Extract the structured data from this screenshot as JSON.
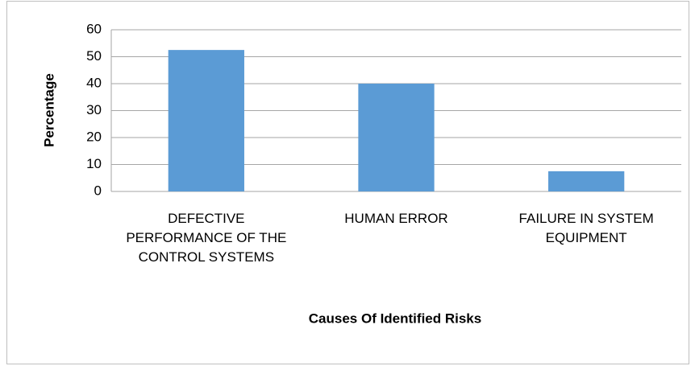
{
  "chart_data": {
    "type": "bar",
    "x_label": "Causes Of Identified Risks",
    "y_label": "Percentage",
    "categories": [
      "DEFECTIVE PERFORMANCE OF THE CONTROL SYSTEMS",
      "HUMAN ERROR",
      "FAILURE IN SYSTEM EQUIPMENT"
    ],
    "values": [
      52.5,
      40,
      7.5
    ],
    "color": "#5b9bd5",
    "ylim": [
      0,
      60
    ],
    "yticks": [
      0,
      10,
      20,
      30,
      40,
      50,
      60
    ],
    "grid": true
  }
}
